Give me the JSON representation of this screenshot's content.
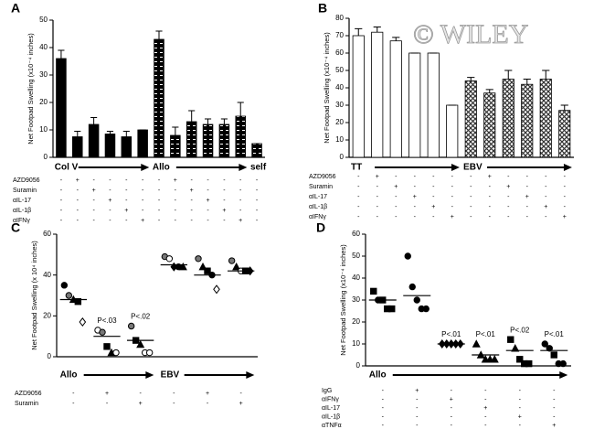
{
  "chart_data": [
    {
      "type": "bar",
      "panel": "A",
      "ylabel": "Net Footpad Swelling (x10⁻⁴ inches)",
      "categories": [
        "Col V",
        null,
        null,
        null,
        null,
        null,
        "Allo",
        null,
        null,
        null,
        null,
        null,
        "self"
      ],
      "series": [
        {
          "color": "#000000",
          "pattern": "solid",
          "values": [
            36,
            7.5,
            12,
            8.5,
            7.5,
            10,
            null,
            null,
            null,
            null,
            null,
            null,
            null
          ],
          "errors": [
            3,
            2,
            2.5,
            1,
            2,
            0,
            null,
            null,
            null,
            null,
            null,
            null,
            null
          ]
        },
        {
          "color": "#000000",
          "pattern": "dashes",
          "values": [
            null,
            null,
            null,
            null,
            null,
            null,
            43,
            8,
            13,
            12,
            12,
            15,
            5
          ],
          "errors": [
            null,
            null,
            null,
            null,
            null,
            null,
            3,
            3,
            4,
            2,
            2,
            5,
            0
          ]
        }
      ],
      "ylim": [
        0,
        50
      ],
      "yticks": [
        0,
        10,
        20,
        30,
        40,
        50
      ],
      "treatments": [
        {
          "name": "AZD9056",
          "signs": [
            "-",
            "+",
            "-",
            "-",
            "-",
            "-",
            "-",
            "+",
            "-",
            "-",
            "-",
            "-",
            "-"
          ]
        },
        {
          "name": "Suramin",
          "signs": [
            "-",
            "-",
            "+",
            "-",
            "-",
            "-",
            "-",
            "-",
            "+",
            "-",
            "-",
            "-",
            "-"
          ]
        },
        {
          "name": "αIL-17",
          "signs": [
            "-",
            "-",
            "-",
            "+",
            "-",
            "-",
            "-",
            "-",
            "-",
            "+",
            "-",
            "-",
            "-"
          ]
        },
        {
          "name": "αIL-1β",
          "signs": [
            "-",
            "-",
            "-",
            "-",
            "+",
            "-",
            "-",
            "-",
            "-",
            "-",
            "+",
            "-",
            "-"
          ]
        },
        {
          "name": "αIFNγ",
          "signs": [
            "-",
            "-",
            "-",
            "-",
            "-",
            "+",
            "-",
            "-",
            "-",
            "-",
            "-",
            "+",
            "-"
          ]
        }
      ]
    },
    {
      "type": "bar",
      "panel": "B",
      "ylabel": "Net Footpad Swelling (x10⁻⁴ inches)",
      "watermark": "© WILEY",
      "categories": [
        "TT",
        null,
        null,
        null,
        null,
        null,
        "EBV",
        null,
        null,
        null,
        null,
        null
      ],
      "series": [
        {
          "color": "#ffffff",
          "pattern": "solid",
          "values": [
            70,
            72,
            67,
            60,
            60,
            30,
            null,
            null,
            null,
            null,
            null,
            null
          ],
          "errors": [
            4,
            3,
            2,
            0,
            0,
            0,
            null,
            null,
            null,
            null,
            null,
            null
          ]
        },
        {
          "color": "#555555",
          "pattern": "crosshatch",
          "values": [
            null,
            null,
            null,
            null,
            null,
            null,
            44,
            37,
            45,
            42,
            45,
            27
          ],
          "errors": [
            null,
            null,
            null,
            null,
            null,
            null,
            2,
            2,
            5,
            3,
            5,
            3
          ]
        }
      ],
      "ylim": [
        0,
        80
      ],
      "yticks": [
        0,
        10,
        20,
        30,
        40,
        50,
        60,
        70,
        80
      ],
      "treatments": [
        {
          "name": "AZD9056",
          "signs": [
            "-",
            "+",
            "-",
            "-",
            "-",
            "-",
            "-",
            "+",
            "-",
            "-",
            "-",
            "-"
          ]
        },
        {
          "name": "Suramin",
          "signs": [
            "-",
            "-",
            "+",
            "-",
            "-",
            "-",
            "-",
            "-",
            "+",
            "-",
            "-",
            "-"
          ]
        },
        {
          "name": "αIL-17",
          "signs": [
            "-",
            "-",
            "-",
            "+",
            "-",
            "-",
            "-",
            "-",
            "-",
            "+",
            "-",
            "-"
          ]
        },
        {
          "name": "αIL-1β",
          "signs": [
            "-",
            "-",
            "-",
            "-",
            "+",
            "-",
            "-",
            "-",
            "-",
            "-",
            "+",
            "-"
          ]
        },
        {
          "name": "αIFNγ",
          "signs": [
            "-",
            "-",
            "-",
            "-",
            "-",
            "+",
            "-",
            "-",
            "-",
            "-",
            "-",
            "+"
          ]
        }
      ]
    },
    {
      "type": "dot",
      "panel": "C",
      "ylabel": "Net Footpad Swelling (x 10⁴ inches)",
      "categories": [
        "Allo",
        null,
        null,
        "EBV",
        null,
        null
      ],
      "points": [
        [
          35,
          30,
          28,
          27,
          17
        ],
        [
          13,
          12,
          5,
          2,
          2
        ],
        [
          15,
          8,
          6,
          2,
          2
        ],
        [
          49,
          48,
          44,
          44,
          44
        ],
        [
          48,
          44,
          42,
          40,
          33
        ],
        [
          47,
          44,
          42,
          42,
          42
        ]
      ],
      "markers": [
        [
          "circle",
          "gray-circle",
          "triangle",
          "square",
          "open-diamond"
        ],
        [
          "open-circle",
          "gray-circle",
          "square",
          "triangle",
          "open-circle"
        ],
        [
          "gray-circle",
          "square",
          "triangle",
          "open-circle",
          "open-circle"
        ],
        [
          "gray-circle",
          "open-circle",
          "diamond",
          "circle",
          "triangle"
        ],
        [
          "gray-circle",
          "triangle",
          "square",
          "circle",
          "open-diamond"
        ],
        [
          "gray-circle",
          "triangle",
          "open-circle",
          "square",
          "diamond"
        ]
      ],
      "means": [
        28,
        10,
        8,
        45,
        40,
        42
      ],
      "annotations": [
        null,
        "P<.03",
        "P<.02",
        null,
        null,
        null
      ],
      "ylim": [
        0,
        60
      ],
      "yticks": [
        0,
        20,
        40,
        60
      ],
      "treatments": [
        {
          "name": "AZD9056",
          "signs": [
            "-",
            "+",
            "-",
            "-",
            "+",
            "-"
          ]
        },
        {
          "name": "Suramin",
          "signs": [
            "-",
            "-",
            "+",
            "-",
            "-",
            "+"
          ]
        }
      ]
    },
    {
      "type": "dot",
      "panel": "D",
      "ylabel": "Net Footpad Swelling (x10⁻⁴ inches)",
      "categories": [
        "Allo",
        null,
        null,
        null,
        null,
        null
      ],
      "points": [
        [
          34,
          30,
          30,
          26,
          26
        ],
        [
          50,
          36,
          30,
          26,
          26
        ],
        [
          10,
          10,
          10,
          10,
          10
        ],
        [
          10,
          5,
          3,
          3,
          3
        ],
        [
          12,
          8,
          3,
          1,
          1
        ],
        [
          10,
          8,
          5,
          1,
          1
        ]
      ],
      "markers": [
        [
          "square",
          "circle",
          "square",
          "square",
          "square"
        ],
        [
          "circle",
          "circle",
          "circle",
          "circle",
          "circle"
        ],
        [
          "diamond",
          "diamond",
          "diamond",
          "diamond",
          "diamond"
        ],
        [
          "triangle",
          "triangle",
          "triangle",
          "triangle",
          "triangle"
        ],
        [
          "square",
          "triangle",
          "square",
          "square",
          "square"
        ],
        [
          "circle",
          "circle",
          "square",
          "circle",
          "circle"
        ]
      ],
      "means": [
        30,
        32,
        10,
        5,
        7,
        7
      ],
      "annotations": [
        null,
        null,
        "P<.01",
        "P<.01",
        "P<.02",
        "P<.01"
      ],
      "ylim": [
        0,
        60
      ],
      "yticks": [
        0,
        10,
        20,
        30,
        40,
        50,
        60
      ],
      "treatments": [
        {
          "name": "IgG",
          "signs": [
            "-",
            "+",
            "-",
            "-",
            "-",
            "-"
          ]
        },
        {
          "name": "αIFNγ",
          "signs": [
            "-",
            "-",
            "+",
            "-",
            "-",
            "-"
          ]
        },
        {
          "name": "αIL-17",
          "signs": [
            "-",
            "-",
            "-",
            "+",
            "-",
            "-"
          ]
        },
        {
          "name": "αIL-1β",
          "signs": [
            "-",
            "-",
            "-",
            "-",
            "+",
            "-"
          ]
        },
        {
          "name": "αTNFα",
          "signs": [
            "-",
            "-",
            "-",
            "-",
            "-",
            "+"
          ]
        }
      ]
    }
  ]
}
